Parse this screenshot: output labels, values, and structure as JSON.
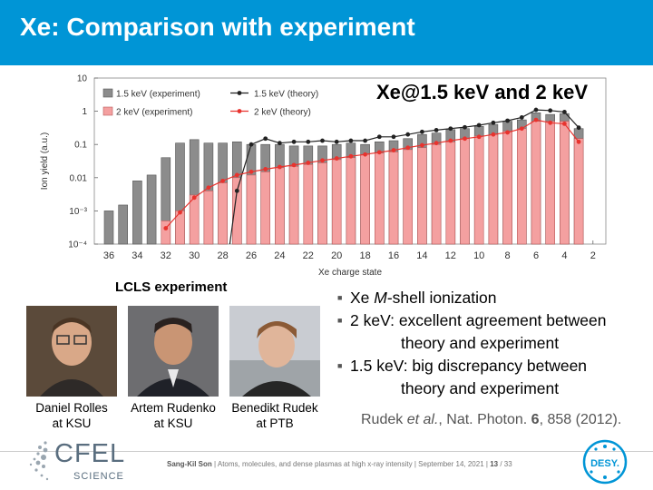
{
  "slide": {
    "title": "Xe: Comparison with experiment",
    "overlay_title": "Xe@1.5 keV and 2 keV",
    "colors": {
      "title_bar": "#0095d6",
      "exp_1_5": "#8c8c8c",
      "exp_2": "#f4a0a0",
      "theory_1_5": "#222222",
      "theory_2": "#e8332e"
    }
  },
  "chart_data": {
    "type": "bar",
    "ylabel": "Ion yield (a.u.)",
    "xlabel": "Xe charge state",
    "y_scale": "log",
    "ylim": [
      0.0001,
      10
    ],
    "y_ticks": [
      "10",
      "1",
      "0.1",
      "0.01",
      "10⁻³",
      "10⁻⁴"
    ],
    "x_ticks": [
      "36",
      "34",
      "32",
      "30",
      "28",
      "26",
      "24",
      "22",
      "20",
      "18",
      "16",
      "14",
      "12",
      "10",
      "8",
      "6",
      "4",
      "2"
    ],
    "legend_position": "top-left",
    "charge_states": [
      36,
      35,
      34,
      33,
      32,
      31,
      30,
      29,
      28,
      27,
      26,
      25,
      24,
      23,
      22,
      21,
      20,
      19,
      18,
      17,
      16,
      15,
      14,
      13,
      12,
      11,
      10,
      9,
      8,
      7,
      6,
      5,
      4,
      3
    ],
    "series": [
      {
        "name": "1.5 keV (experiment)",
        "kind": "bar",
        "values": [
          0.001,
          0.0015,
          0.008,
          0.012,
          0.04,
          0.11,
          0.14,
          0.11,
          0.11,
          0.12,
          0.1,
          0.1,
          0.1,
          0.09,
          0.09,
          0.09,
          0.1,
          0.11,
          0.1,
          0.12,
          0.13,
          0.15,
          0.2,
          0.22,
          0.28,
          0.3,
          0.35,
          0.4,
          0.5,
          0.55,
          0.9,
          0.8,
          0.85,
          0.3
        ]
      },
      {
        "name": "2 keV (experiment)",
        "kind": "bar",
        "values": [
          null,
          null,
          null,
          null,
          0.0005,
          0.001,
          0.003,
          0.004,
          0.007,
          0.01,
          0.012,
          0.015,
          0.02,
          0.022,
          0.025,
          0.028,
          0.035,
          0.04,
          0.05,
          0.055,
          0.06,
          0.07,
          0.08,
          0.1,
          0.12,
          0.15,
          0.18,
          0.2,
          0.25,
          0.3,
          0.5,
          0.5,
          0.5,
          0.15
        ]
      },
      {
        "name": "1.5 keV (theory)",
        "kind": "line",
        "values": [
          null,
          null,
          null,
          null,
          null,
          null,
          null,
          null,
          null,
          0.004,
          0.1,
          0.15,
          0.11,
          0.12,
          0.12,
          0.13,
          0.12,
          0.13,
          0.13,
          0.17,
          0.17,
          0.2,
          0.24,
          0.27,
          0.3,
          0.33,
          0.38,
          0.45,
          0.52,
          0.65,
          1.1,
          1.05,
          0.95,
          0.32
        ]
      },
      {
        "name": "2 keV (theory)",
        "kind": "line",
        "values": [
          null,
          null,
          null,
          null,
          0.0003,
          0.0009,
          0.0025,
          0.005,
          0.008,
          0.012,
          0.015,
          0.018,
          0.021,
          0.024,
          0.028,
          0.033,
          0.038,
          0.044,
          0.05,
          0.058,
          0.067,
          0.08,
          0.095,
          0.11,
          0.13,
          0.15,
          0.17,
          0.2,
          0.23,
          0.3,
          0.55,
          0.45,
          0.42,
          0.12
        ]
      }
    ]
  },
  "experiment": {
    "heading": "LCLS experiment",
    "people": [
      {
        "name": "Daniel Rolles",
        "affiliation": "at KSU"
      },
      {
        "name": "Artem Rudenko",
        "affiliation": "at KSU"
      },
      {
        "name": "Benedikt Rudek",
        "affiliation": "at PTB"
      }
    ]
  },
  "bullets": [
    {
      "lead": "Xe ",
      "em": "M",
      "rest": "-shell ionization",
      "cont": ""
    },
    {
      "lead": "2 keV: excellent agreement between",
      "em": "",
      "rest": "",
      "cont": "theory and experiment"
    },
    {
      "lead": "1.5 keV: big discrepancy between",
      "em": "",
      "rest": "",
      "cont": "theory and experiment"
    }
  ],
  "citation": {
    "author": "Rudek ",
    "etal": "et al.",
    "journal": ", Nat. Photon. ",
    "volume": "6",
    "pages": ", 858 (2012)."
  },
  "footer": {
    "author": "Sang-Kil Son",
    "text": "  |  Atoms, molecules, and dense plasmas at high x-ray intensity  |  September 14, 2021  |  ",
    "page": "13",
    "total": " / 33"
  },
  "logos": {
    "cfel": "CFEL",
    "cfel_sub": "SCIENCE",
    "desy": "DESY."
  }
}
